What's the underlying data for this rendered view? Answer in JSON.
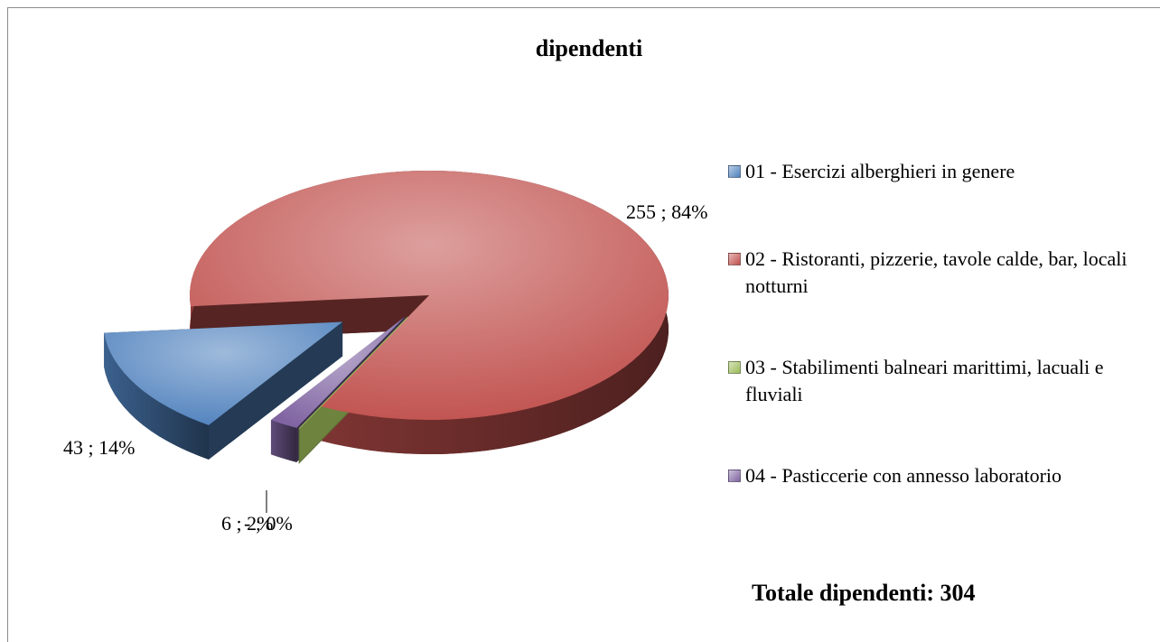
{
  "chart_data": {
    "type": "pie3d",
    "title": "dipendenti",
    "categories": [
      "01 - Esercizi alberghieri in genere",
      "02 - Ristoranti, pizzerie, tavole calde, bar, locali notturni",
      "03 - Stabilimenti balneari marittimi, lacuali e fluviali",
      "04 - Pasticcerie con annesso laboratorio"
    ],
    "values": [
      43,
      255,
      0,
      6
    ],
    "value_labels": [
      "43 ; 14%",
      "255 ; 84%",
      "- ; 0%",
      "6 ; 2%"
    ],
    "colors": [
      "#4f81bd",
      "#c0504d",
      "#9bbb59",
      "#8064a2"
    ],
    "legend": "right",
    "annotation": "Totale dipendenti: 304"
  }
}
